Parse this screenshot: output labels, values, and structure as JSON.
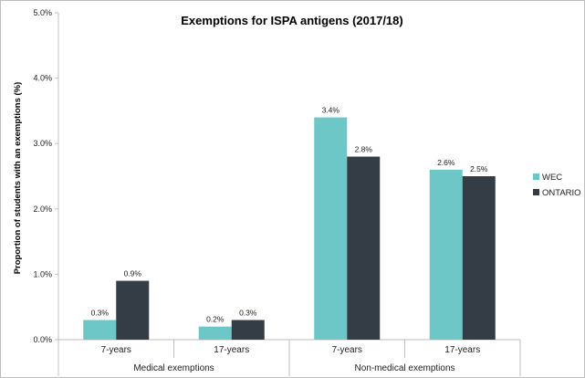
{
  "chart_data": {
    "type": "bar",
    "title": "Exemptions for ISPA antigens (2017/18)",
    "ylabel": "Proportion of students with an exemptions (%)",
    "ylim": [
      0,
      5
    ],
    "yticks": [
      "0.0%",
      "1.0%",
      "2.0%",
      "3.0%",
      "4.0%",
      "5.0%"
    ],
    "groups": [
      {
        "label": "Medical exemptions",
        "categories": [
          "7-years",
          "17-years"
        ]
      },
      {
        "label": "Non-medical exemptions",
        "categories": [
          "7-years",
          "17-years"
        ]
      }
    ],
    "categories": [
      "7-years",
      "17-years",
      "7-years",
      "17-years"
    ],
    "series": [
      {
        "name": "WEC",
        "color": "#6cc7c6",
        "values": [
          0.3,
          0.2,
          3.4,
          2.6
        ],
        "labels": [
          "0.3%",
          "0.2%",
          "3.4%",
          "2.6%"
        ]
      },
      {
        "name": "ONTARIO",
        "color": "#343d45",
        "values": [
          0.9,
          0.3,
          2.8,
          2.5
        ],
        "labels": [
          "0.9%",
          "0.3%",
          "2.8%",
          "2.5%"
        ]
      }
    ],
    "legend": "right",
    "grid": false
  }
}
